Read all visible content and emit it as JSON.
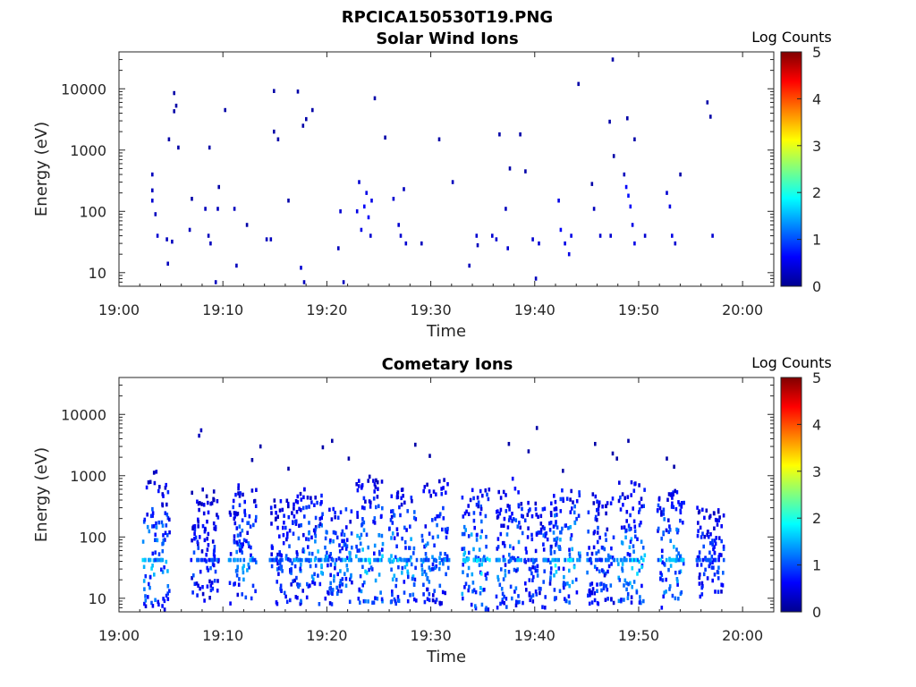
{
  "page_title": "RPCICA150530T19.PNG",
  "chart_data": [
    {
      "type": "heatmap",
      "title": "Solar Wind Ions",
      "xlabel": "Time",
      "ylabel": "Energy (eV)",
      "x_ticks": [
        "19:00",
        "19:10",
        "19:20",
        "19:30",
        "19:40",
        "19:50",
        "20:00"
      ],
      "x_range_minutes": [
        0,
        63
      ],
      "y_ticks": [
        "10",
        "100",
        "1000",
        "10000"
      ],
      "y_scale": "log",
      "ylim": [
        6,
        40000
      ],
      "colorbar": {
        "label": "Log Counts",
        "ticks": [
          "0",
          "1",
          "2",
          "3",
          "4",
          "5"
        ],
        "range": [
          0,
          5
        ],
        "colormap": "jet"
      },
      "cells": [
        {
          "t": 3.1,
          "e": 400,
          "v": 0.3
        },
        {
          "t": 3.1,
          "e": 220,
          "v": 0.3
        },
        {
          "t": 3.1,
          "e": 150,
          "v": 0.4
        },
        {
          "t": 3.4,
          "e": 90,
          "v": 0.3
        },
        {
          "t": 3.6,
          "e": 40,
          "v": 0.4
        },
        {
          "t": 4.5,
          "e": 35,
          "v": 0.3
        },
        {
          "t": 4.6,
          "e": 14,
          "v": 0.3
        },
        {
          "t": 5.0,
          "e": 32,
          "v": 0.3
        },
        {
          "t": 4.7,
          "e": 1500,
          "v": 0.2
        },
        {
          "t": 5.2,
          "e": 8500,
          "v": 0.2
        },
        {
          "t": 5.4,
          "e": 5300,
          "v": 0.2
        },
        {
          "t": 5.2,
          "e": 4300,
          "v": 0.2
        },
        {
          "t": 5.6,
          "e": 1100,
          "v": 0.2
        },
        {
          "t": 6.7,
          "e": 50,
          "v": 0.3
        },
        {
          "t": 6.9,
          "e": 160,
          "v": 0.2
        },
        {
          "t": 8.2,
          "e": 110,
          "v": 0.3
        },
        {
          "t": 8.5,
          "e": 40,
          "v": 0.3
        },
        {
          "t": 8.7,
          "e": 30,
          "v": 0.3
        },
        {
          "t": 8.6,
          "e": 1100,
          "v": 0.2
        },
        {
          "t": 9.2,
          "e": 7,
          "v": 0.3
        },
        {
          "t": 9.5,
          "e": 250,
          "v": 0.2
        },
        {
          "t": 9.4,
          "e": 110,
          "v": 0.3
        },
        {
          "t": 10.1,
          "e": 4500,
          "v": 0.2
        },
        {
          "t": 11.0,
          "e": 110,
          "v": 0.3
        },
        {
          "t": 11.2,
          "e": 13,
          "v": 0.3
        },
        {
          "t": 12.2,
          "e": 60,
          "v": 0.2
        },
        {
          "t": 14.1,
          "e": 35,
          "v": 0.3
        },
        {
          "t": 14.5,
          "e": 35,
          "v": 0.3
        },
        {
          "t": 14.8,
          "e": 9200,
          "v": 0.2
        },
        {
          "t": 14.8,
          "e": 2000,
          "v": 0.2
        },
        {
          "t": 15.2,
          "e": 1500,
          "v": 0.2
        },
        {
          "t": 16.2,
          "e": 150,
          "v": 0.2
        },
        {
          "t": 17.1,
          "e": 9000,
          "v": 0.2
        },
        {
          "t": 17.4,
          "e": 12,
          "v": 0.4
        },
        {
          "t": 17.6,
          "e": 2500,
          "v": 0.2
        },
        {
          "t": 17.7,
          "e": 7,
          "v": 0.3
        },
        {
          "t": 17.9,
          "e": 3200,
          "v": 0.2
        },
        {
          "t": 18.5,
          "e": 4500,
          "v": 0.2
        },
        {
          "t": 21.0,
          "e": 25,
          "v": 0.3
        },
        {
          "t": 21.2,
          "e": 100,
          "v": 0.4
        },
        {
          "t": 21.5,
          "e": 7,
          "v": 0.3
        },
        {
          "t": 22.8,
          "e": 100,
          "v": 0.5
        },
        {
          "t": 23.0,
          "e": 300,
          "v": 0.4
        },
        {
          "t": 23.2,
          "e": 50,
          "v": 0.5
        },
        {
          "t": 23.5,
          "e": 120,
          "v": 0.6
        },
        {
          "t": 23.7,
          "e": 200,
          "v": 0.5
        },
        {
          "t": 23.9,
          "e": 80,
          "v": 0.6
        },
        {
          "t": 24.2,
          "e": 150,
          "v": 0.5
        },
        {
          "t": 24.5,
          "e": 7000,
          "v": 0.2
        },
        {
          "t": 24.1,
          "e": 40,
          "v": 0.4
        },
        {
          "t": 25.5,
          "e": 1600,
          "v": 0.2
        },
        {
          "t": 26.3,
          "e": 160,
          "v": 0.4
        },
        {
          "t": 26.8,
          "e": 60,
          "v": 0.4
        },
        {
          "t": 27.0,
          "e": 40,
          "v": 0.4
        },
        {
          "t": 27.3,
          "e": 230,
          "v": 0.3
        },
        {
          "t": 27.5,
          "e": 30,
          "v": 0.4
        },
        {
          "t": 29.0,
          "e": 30,
          "v": 0.3
        },
        {
          "t": 30.7,
          "e": 1500,
          "v": 0.2
        },
        {
          "t": 32.0,
          "e": 300,
          "v": 0.3
        },
        {
          "t": 33.6,
          "e": 13,
          "v": 0.3
        },
        {
          "t": 34.3,
          "e": 40,
          "v": 0.4
        },
        {
          "t": 34.4,
          "e": 28,
          "v": 0.3
        },
        {
          "t": 35.8,
          "e": 40,
          "v": 0.4
        },
        {
          "t": 36.2,
          "e": 35,
          "v": 0.4
        },
        {
          "t": 36.5,
          "e": 1800,
          "v": 0.2
        },
        {
          "t": 37.1,
          "e": 110,
          "v": 0.3
        },
        {
          "t": 37.3,
          "e": 25,
          "v": 0.4
        },
        {
          "t": 37.5,
          "e": 500,
          "v": 0.2
        },
        {
          "t": 38.5,
          "e": 1800,
          "v": 0.2
        },
        {
          "t": 39.0,
          "e": 450,
          "v": 0.2
        },
        {
          "t": 39.7,
          "e": 35,
          "v": 0.4
        },
        {
          "t": 40.0,
          "e": 8,
          "v": 0.3
        },
        {
          "t": 40.3,
          "e": 30,
          "v": 0.4
        },
        {
          "t": 42.2,
          "e": 150,
          "v": 0.5
        },
        {
          "t": 42.4,
          "e": 50,
          "v": 0.6
        },
        {
          "t": 42.8,
          "e": 30,
          "v": 0.5
        },
        {
          "t": 43.2,
          "e": 20,
          "v": 0.5
        },
        {
          "t": 43.4,
          "e": 40,
          "v": 0.5
        },
        {
          "t": 44.1,
          "e": 12000,
          "v": 0.2
        },
        {
          "t": 45.4,
          "e": 280,
          "v": 0.2
        },
        {
          "t": 45.6,
          "e": 110,
          "v": 0.3
        },
        {
          "t": 46.2,
          "e": 40,
          "v": 0.4
        },
        {
          "t": 47.1,
          "e": 2900,
          "v": 0.2
        },
        {
          "t": 47.2,
          "e": 40,
          "v": 0.4
        },
        {
          "t": 47.4,
          "e": 30000,
          "v": 0.2
        },
        {
          "t": 47.5,
          "e": 800,
          "v": 0.2
        },
        {
          "t": 48.5,
          "e": 400,
          "v": 0.3
        },
        {
          "t": 48.7,
          "e": 250,
          "v": 0.6
        },
        {
          "t": 48.9,
          "e": 180,
          "v": 0.7
        },
        {
          "t": 49.1,
          "e": 120,
          "v": 0.6
        },
        {
          "t": 49.3,
          "e": 60,
          "v": 0.5
        },
        {
          "t": 49.5,
          "e": 30,
          "v": 0.5
        },
        {
          "t": 48.8,
          "e": 3300,
          "v": 0.2
        },
        {
          "t": 49.5,
          "e": 1500,
          "v": 0.2
        },
        {
          "t": 50.5,
          "e": 40,
          "v": 0.4
        },
        {
          "t": 52.6,
          "e": 200,
          "v": 0.4
        },
        {
          "t": 52.9,
          "e": 120,
          "v": 0.5
        },
        {
          "t": 53.1,
          "e": 40,
          "v": 0.5
        },
        {
          "t": 53.4,
          "e": 30,
          "v": 0.4
        },
        {
          "t": 53.9,
          "e": 400,
          "v": 0.2
        },
        {
          "t": 56.5,
          "e": 6000,
          "v": 0.2
        },
        {
          "t": 56.8,
          "e": 3500,
          "v": 0.2
        },
        {
          "t": 57.0,
          "e": 40,
          "v": 0.4
        }
      ]
    },
    {
      "type": "heatmap",
      "title": "Cometary Ions",
      "xlabel": "Time",
      "ylabel": "Energy (eV)",
      "x_ticks": [
        "19:00",
        "19:10",
        "19:20",
        "19:30",
        "19:40",
        "19:50",
        "20:00"
      ],
      "x_range_minutes": [
        0,
        63
      ],
      "y_ticks": [
        "10",
        "100",
        "1000",
        "10000"
      ],
      "y_scale": "log",
      "ylim": [
        6,
        40000
      ],
      "colorbar": {
        "label": "Log Counts",
        "ticks": [
          "0",
          "1",
          "2",
          "3",
          "4",
          "5"
        ],
        "range": [
          0,
          5
        ],
        "colormap": "jet"
      },
      "clusters": [
        {
          "t": 3.5,
          "e_low": 6,
          "e_high": 1300,
          "peak": 1.8
        },
        {
          "t": 8.2,
          "e_low": 8,
          "e_high": 600,
          "peak": 1.2
        },
        {
          "t": 11.8,
          "e_low": 7,
          "e_high": 700,
          "peak": 1.6
        },
        {
          "t": 15.8,
          "e_low": 8,
          "e_high": 400,
          "peak": 1.3
        },
        {
          "t": 18.2,
          "e_low": 8,
          "e_high": 600,
          "peak": 1.7
        },
        {
          "t": 21.0,
          "e_low": 8,
          "e_high": 300,
          "peak": 1.6
        },
        {
          "t": 24.0,
          "e_low": 7,
          "e_high": 1000,
          "peak": 1.9
        },
        {
          "t": 27.2,
          "e_low": 8,
          "e_high": 600,
          "peak": 1.8
        },
        {
          "t": 30.3,
          "e_low": 8,
          "e_high": 900,
          "peak": 1.6
        },
        {
          "t": 34.2,
          "e_low": 6,
          "e_high": 600,
          "peak": 2.0
        },
        {
          "t": 37.5,
          "e_low": 7,
          "e_high": 1000,
          "peak": 1.6
        },
        {
          "t": 40.2,
          "e_low": 7,
          "e_high": 400,
          "peak": 1.4
        },
        {
          "t": 43.0,
          "e_low": 8,
          "e_high": 600,
          "peak": 2.0
        },
        {
          "t": 46.2,
          "e_low": 8,
          "e_high": 500,
          "peak": 1.4
        },
        {
          "t": 49.2,
          "e_low": 8,
          "e_high": 900,
          "peak": 1.9
        },
        {
          "t": 53.0,
          "e_low": 7,
          "e_high": 600,
          "peak": 1.8
        },
        {
          "t": 56.8,
          "e_low": 10,
          "e_high": 300,
          "peak": 1.2
        }
      ],
      "sparse": [
        {
          "t": 7.8,
          "e": 5500,
          "v": 0.3
        },
        {
          "t": 7.6,
          "e": 4500,
          "v": 0.3
        },
        {
          "t": 13.5,
          "e": 3000,
          "v": 0.2
        },
        {
          "t": 12.7,
          "e": 1800,
          "v": 0.2
        },
        {
          "t": 16.2,
          "e": 1300,
          "v": 0.2
        },
        {
          "t": 20.4,
          "e": 3700,
          "v": 0.2
        },
        {
          "t": 19.5,
          "e": 2900,
          "v": 0.2
        },
        {
          "t": 22.0,
          "e": 1900,
          "v": 0.2
        },
        {
          "t": 28.4,
          "e": 3200,
          "v": 0.2
        },
        {
          "t": 29.8,
          "e": 2100,
          "v": 0.2
        },
        {
          "t": 37.4,
          "e": 3300,
          "v": 0.2
        },
        {
          "t": 40.1,
          "e": 6000,
          "v": 0.2
        },
        {
          "t": 39.3,
          "e": 2500,
          "v": 0.2
        },
        {
          "t": 45.7,
          "e": 3300,
          "v": 0.2
        },
        {
          "t": 47.4,
          "e": 2300,
          "v": 0.2
        },
        {
          "t": 48.9,
          "e": 3700,
          "v": 0.2
        },
        {
          "t": 47.8,
          "e": 1900,
          "v": 0.2
        },
        {
          "t": 52.6,
          "e": 1900,
          "v": 0.2
        },
        {
          "t": 53.3,
          "e": 1400,
          "v": 0.2
        },
        {
          "t": 42.6,
          "e": 1200,
          "v": 0.2
        }
      ]
    }
  ]
}
